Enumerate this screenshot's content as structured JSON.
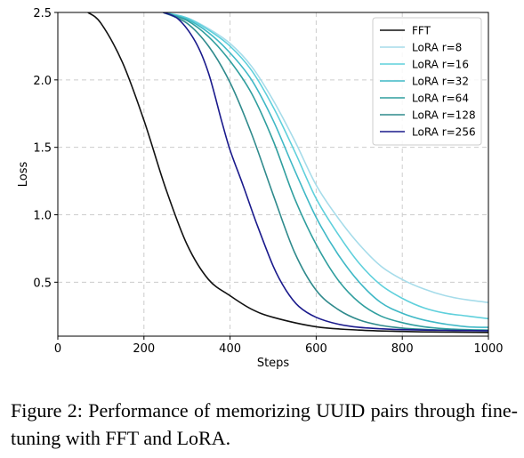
{
  "chart_data": {
    "type": "line",
    "xlabel": "Steps",
    "ylabel": "Loss",
    "xlim": [
      0,
      1000
    ],
    "ylim": [
      0.1,
      2.5
    ],
    "xticks": [
      0,
      200,
      400,
      600,
      800,
      1000
    ],
    "yticks": [
      0.5,
      1.0,
      1.5,
      2.0,
      2.5
    ],
    "xtick_labels": [
      "0",
      "200",
      "400",
      "600",
      "800",
      "1000"
    ],
    "ytick_labels": [
      "0.5",
      "1.0",
      "1.5",
      "2.0",
      "2.5"
    ],
    "grid": true,
    "legend_position": "top-right",
    "series": [
      {
        "name": "FFT",
        "color": "#111111",
        "points": [
          [
            70,
            2.5
          ],
          [
            100,
            2.42
          ],
          [
            150,
            2.13
          ],
          [
            200,
            1.7
          ],
          [
            250,
            1.2
          ],
          [
            300,
            0.78
          ],
          [
            350,
            0.52
          ],
          [
            400,
            0.4
          ],
          [
            450,
            0.3
          ],
          [
            500,
            0.24
          ],
          [
            600,
            0.17
          ],
          [
            700,
            0.145
          ],
          [
            800,
            0.135
          ],
          [
            900,
            0.13
          ],
          [
            1000,
            0.128
          ]
        ]
      },
      {
        "name": "LoRA r=8",
        "color": "#a6dcea",
        "points": [
          [
            245,
            2.5
          ],
          [
            300,
            2.46
          ],
          [
            350,
            2.38
          ],
          [
            400,
            2.27
          ],
          [
            450,
            2.1
          ],
          [
            500,
            1.85
          ],
          [
            550,
            1.55
          ],
          [
            600,
            1.22
          ],
          [
            650,
            0.98
          ],
          [
            700,
            0.78
          ],
          [
            750,
            0.62
          ],
          [
            800,
            0.52
          ],
          [
            850,
            0.45
          ],
          [
            900,
            0.4
          ],
          [
            950,
            0.37
          ],
          [
            1000,
            0.35
          ]
        ]
      },
      {
        "name": "LoRA r=16",
        "color": "#5fd0dc",
        "points": [
          [
            245,
            2.5
          ],
          [
            300,
            2.46
          ],
          [
            350,
            2.37
          ],
          [
            400,
            2.25
          ],
          [
            450,
            2.07
          ],
          [
            500,
            1.8
          ],
          [
            550,
            1.47
          ],
          [
            600,
            1.12
          ],
          [
            650,
            0.86
          ],
          [
            700,
            0.64
          ],
          [
            750,
            0.48
          ],
          [
            800,
            0.38
          ],
          [
            850,
            0.31
          ],
          [
            900,
            0.27
          ],
          [
            950,
            0.25
          ],
          [
            1000,
            0.23
          ]
        ]
      },
      {
        "name": "LoRA r=32",
        "color": "#3fb8c6",
        "points": [
          [
            245,
            2.5
          ],
          [
            300,
            2.45
          ],
          [
            350,
            2.35
          ],
          [
            400,
            2.2
          ],
          [
            450,
            2.0
          ],
          [
            500,
            1.7
          ],
          [
            550,
            1.33
          ],
          [
            600,
            0.98
          ],
          [
            650,
            0.71
          ],
          [
            700,
            0.5
          ],
          [
            750,
            0.35
          ],
          [
            800,
            0.27
          ],
          [
            850,
            0.22
          ],
          [
            900,
            0.19
          ],
          [
            950,
            0.17
          ],
          [
            1000,
            0.165
          ]
        ]
      },
      {
        "name": "LoRA r=64",
        "color": "#2f9e9e",
        "points": [
          [
            245,
            2.5
          ],
          [
            300,
            2.44
          ],
          [
            350,
            2.32
          ],
          [
            400,
            2.14
          ],
          [
            450,
            1.9
          ],
          [
            500,
            1.55
          ],
          [
            550,
            1.12
          ],
          [
            600,
            0.78
          ],
          [
            650,
            0.52
          ],
          [
            700,
            0.35
          ],
          [
            750,
            0.25
          ],
          [
            800,
            0.2
          ],
          [
            850,
            0.17
          ],
          [
            900,
            0.155
          ],
          [
            950,
            0.148
          ],
          [
            1000,
            0.145
          ]
        ]
      },
      {
        "name": "LoRA r=128",
        "color": "#2f8a8c",
        "points": [
          [
            245,
            2.5
          ],
          [
            300,
            2.42
          ],
          [
            350,
            2.25
          ],
          [
            400,
            1.98
          ],
          [
            450,
            1.6
          ],
          [
            500,
            1.15
          ],
          [
            550,
            0.72
          ],
          [
            600,
            0.44
          ],
          [
            650,
            0.3
          ],
          [
            700,
            0.22
          ],
          [
            750,
            0.18
          ],
          [
            800,
            0.16
          ],
          [
            850,
            0.15
          ],
          [
            900,
            0.145
          ],
          [
            950,
            0.142
          ],
          [
            1000,
            0.14
          ]
        ]
      },
      {
        "name": "LoRA r=256",
        "color": "#1a1a8c",
        "points": [
          [
            245,
            2.5
          ],
          [
            280,
            2.45
          ],
          [
            320,
            2.28
          ],
          [
            350,
            2.05
          ],
          [
            380,
            1.7
          ],
          [
            400,
            1.48
          ],
          [
            430,
            1.22
          ],
          [
            460,
            0.95
          ],
          [
            500,
            0.62
          ],
          [
            530,
            0.44
          ],
          [
            560,
            0.32
          ],
          [
            600,
            0.24
          ],
          [
            650,
            0.19
          ],
          [
            700,
            0.165
          ],
          [
            750,
            0.155
          ],
          [
            800,
            0.148
          ],
          [
            900,
            0.143
          ],
          [
            1000,
            0.14
          ]
        ]
      }
    ]
  },
  "caption": {
    "text": "Figure 2:  Performance of memorizing UUID pairs through fine-tuning with FFT and LoRA."
  }
}
